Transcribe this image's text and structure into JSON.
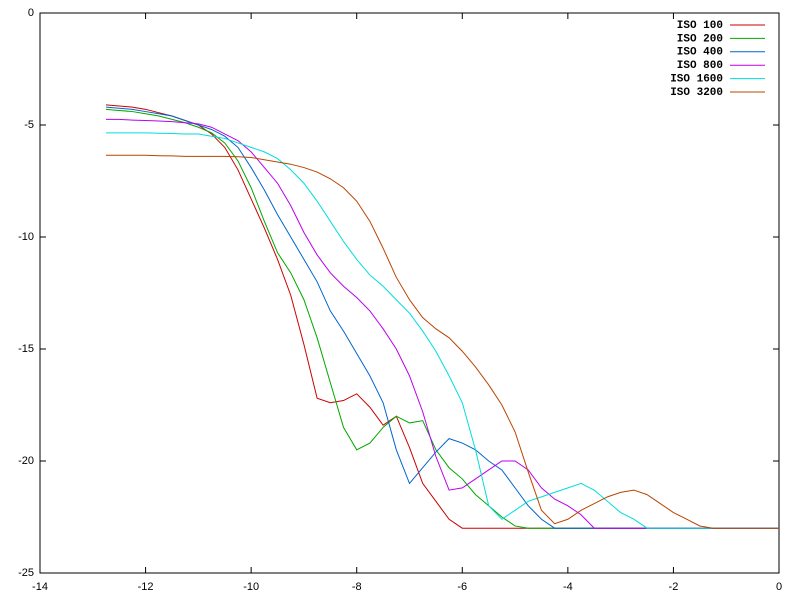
{
  "chart_data": {
    "type": "line",
    "x": [
      -12.75,
      -12.5,
      -12.25,
      -12,
      -11.75,
      -11.5,
      -11.25,
      -11,
      -10.75,
      -10.5,
      -10.25,
      -10,
      -9.75,
      -9.5,
      -9.25,
      -9,
      -8.75,
      -8.5,
      -8.25,
      -8,
      -7.75,
      -7.5,
      -7.25,
      -7,
      -6.75,
      -6.5,
      -6.25,
      -6,
      -5.75,
      -5.5,
      -5.25,
      -5,
      -4.75,
      -4.5,
      -4.25,
      -4,
      -3.75,
      -3.5,
      -3.25,
      -3,
      -2.75,
      -2.5,
      -2.25,
      -2,
      -1.75,
      -1.5,
      -1.25,
      -1,
      -0.75,
      -0.5,
      -0.25,
      0
    ],
    "series": [
      {
        "name": "ISO 100",
        "color": "#cc0000",
        "values": [
          -4.1,
          -4.15,
          -4.2,
          -4.3,
          -4.45,
          -4.6,
          -4.8,
          -5.0,
          -5.4,
          -6.0,
          -7.0,
          -8.3,
          -9.6,
          -11.0,
          -12.6,
          -14.8,
          -17.2,
          -17.4,
          -17.3,
          -17.0,
          -17.6,
          -18.4,
          -18.0,
          -19.4,
          -21.0,
          -21.8,
          -22.6,
          -23,
          -23,
          -23,
          -23,
          -23,
          -23,
          -23,
          -23,
          -23,
          -23,
          -23,
          -23,
          -23,
          -23,
          -23,
          -23,
          -23,
          -23,
          -23,
          -23,
          -23,
          -23,
          -23,
          -23,
          -23
        ]
      },
      {
        "name": "ISO 200",
        "color": "#00a800",
        "values": [
          -4.3,
          -4.35,
          -4.4,
          -4.5,
          -4.6,
          -4.75,
          -4.9,
          -5.1,
          -5.35,
          -5.8,
          -6.6,
          -7.8,
          -9.3,
          -10.7,
          -11.6,
          -12.8,
          -14.5,
          -16.5,
          -18.5,
          -19.5,
          -19.2,
          -18.5,
          -18.0,
          -18.3,
          -18.2,
          -19.5,
          -20.3,
          -20.8,
          -21.5,
          -22.0,
          -22.5,
          -22.9,
          -23,
          -23,
          -23,
          -23,
          -23,
          -23,
          -23,
          -23,
          -23,
          -23,
          -23,
          -23,
          -23,
          -23,
          -23,
          -23,
          -23,
          -23,
          -23,
          -23
        ]
      },
      {
        "name": "ISO 400",
        "color": "#0066cc",
        "values": [
          -4.2,
          -4.25,
          -4.3,
          -4.4,
          -4.5,
          -4.6,
          -4.8,
          -5.0,
          -5.2,
          -5.5,
          -6.0,
          -6.9,
          -7.9,
          -9.0,
          -10.0,
          -11.0,
          -12.0,
          -13.3,
          -14.2,
          -15.2,
          -16.2,
          -17.4,
          -19.5,
          -21.0,
          -20.3,
          -19.6,
          -19.0,
          -19.2,
          -19.5,
          -20.0,
          -20.4,
          -21.2,
          -22.0,
          -22.6,
          -23,
          -23,
          -23,
          -23,
          -23,
          -23,
          -23,
          -23,
          -23,
          -23,
          -23,
          -23,
          -23,
          -23,
          -23,
          -23,
          -23,
          -23
        ]
      },
      {
        "name": "ISO 800",
        "color": "#bb00ee",
        "values": [
          -4.75,
          -4.75,
          -4.78,
          -4.8,
          -4.82,
          -4.85,
          -4.9,
          -4.95,
          -5.1,
          -5.4,
          -5.7,
          -6.2,
          -6.9,
          -7.6,
          -8.6,
          -9.8,
          -10.8,
          -11.6,
          -12.2,
          -12.7,
          -13.3,
          -14.1,
          -15.0,
          -16.2,
          -17.8,
          -19.8,
          -21.3,
          -21.2,
          -20.8,
          -20.4,
          -20.0,
          -20.0,
          -20.4,
          -21.2,
          -21.7,
          -22.0,
          -22.4,
          -23,
          -23,
          -23,
          -23,
          -23,
          -23,
          -23,
          -23,
          -23,
          -23,
          -23,
          -23,
          -23,
          -23,
          -23
        ]
      },
      {
        "name": "ISO 1600",
        "color": "#00dddd",
        "values": [
          -5.35,
          -5.35,
          -5.35,
          -5.35,
          -5.37,
          -5.38,
          -5.4,
          -5.4,
          -5.5,
          -5.6,
          -5.8,
          -6.0,
          -6.2,
          -6.5,
          -7.0,
          -7.6,
          -8.4,
          -9.3,
          -10.2,
          -11.0,
          -11.7,
          -12.2,
          -12.8,
          -13.4,
          -14.2,
          -15.1,
          -16.2,
          -17.4,
          -19.5,
          -22.0,
          -22.6,
          -22.2,
          -21.8,
          -21.6,
          -21.4,
          -21.2,
          -21.0,
          -21.3,
          -21.8,
          -22.3,
          -22.6,
          -23,
          -23,
          -23,
          -23,
          -23,
          -23,
          -23,
          -23,
          -23,
          -23,
          -23
        ]
      },
      {
        "name": "ISO 3200",
        "color": "#bb4400",
        "values": [
          -6.35,
          -6.35,
          -6.35,
          -6.35,
          -6.37,
          -6.38,
          -6.4,
          -6.4,
          -6.4,
          -6.4,
          -6.42,
          -6.45,
          -6.55,
          -6.65,
          -6.75,
          -6.9,
          -7.1,
          -7.4,
          -7.8,
          -8.4,
          -9.3,
          -10.5,
          -11.8,
          -12.8,
          -13.6,
          -14.1,
          -14.5,
          -15.1,
          -15.8,
          -16.6,
          -17.5,
          -18.7,
          -20.5,
          -22.2,
          -22.8,
          -22.6,
          -22.2,
          -21.9,
          -21.6,
          -21.4,
          -21.3,
          -21.5,
          -21.9,
          -22.3,
          -22.6,
          -22.9,
          -23,
          -23,
          -23,
          -23,
          -23,
          -23
        ]
      }
    ],
    "xlim": [
      -14,
      0
    ],
    "ylim": [
      -25,
      0
    ],
    "xticks": [
      -14,
      -12,
      -10,
      -8,
      -6,
      -4,
      -2,
      0
    ],
    "yticks": [
      0,
      -5,
      -10,
      -15,
      -20,
      -25
    ],
    "legend": "top-right"
  }
}
